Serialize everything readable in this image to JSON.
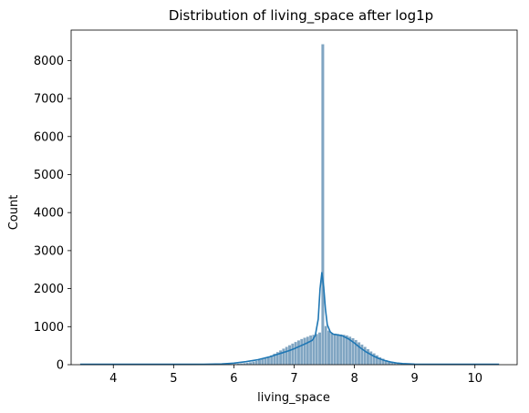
{
  "chart_data": {
    "type": "bar",
    "title": "Distribution of living_space after log1p",
    "xlabel": "living_space",
    "ylabel": "Count",
    "xlim": [
      3.3,
      10.7
    ],
    "ylim": [
      0,
      8800
    ],
    "xticks": [
      4,
      5,
      6,
      7,
      8,
      9,
      10
    ],
    "yticks": [
      0,
      1000,
      2000,
      3000,
      4000,
      5000,
      6000,
      7000,
      8000
    ],
    "grid": false,
    "bin_width": 0.05,
    "histogram": {
      "bin_left_edges": [
        5.8,
        5.85,
        5.9,
        5.95,
        6.0,
        6.05,
        6.1,
        6.15,
        6.2,
        6.25,
        6.3,
        6.35,
        6.4,
        6.45,
        6.5,
        6.55,
        6.6,
        6.65,
        6.7,
        6.75,
        6.8,
        6.85,
        6.9,
        6.95,
        7.0,
        7.05,
        7.1,
        7.15,
        7.2,
        7.25,
        7.3,
        7.35,
        7.4,
        7.45,
        7.5,
        7.55,
        7.6,
        7.65,
        7.7,
        7.75,
        7.8,
        7.85,
        7.9,
        7.95,
        8.0,
        8.05,
        8.1,
        8.15,
        8.2,
        8.25,
        8.3,
        8.35,
        8.4,
        8.45,
        8.5,
        8.55,
        8.6,
        8.65,
        8.7,
        8.75,
        8.8,
        8.85,
        8.9,
        8.95
      ],
      "counts": [
        8,
        10,
        14,
        18,
        22,
        28,
        36,
        45,
        55,
        68,
        85,
        100,
        125,
        150,
        180,
        215,
        250,
        290,
        335,
        380,
        425,
        470,
        515,
        560,
        600,
        640,
        680,
        710,
        740,
        770,
        790,
        810,
        850,
        8430,
        1020,
        900,
        840,
        820,
        810,
        800,
        790,
        770,
        740,
        700,
        650,
        590,
        530,
        470,
        410,
        350,
        300,
        250,
        200,
        160,
        125,
        95,
        70,
        52,
        38,
        28,
        20,
        14,
        10,
        7
      ]
    },
    "kde": {
      "x": [
        3.45,
        4.0,
        5.0,
        5.5,
        5.8,
        6.0,
        6.2,
        6.4,
        6.5,
        6.6,
        6.7,
        6.8,
        6.9,
        7.0,
        7.1,
        7.2,
        7.3,
        7.35,
        7.4,
        7.43,
        7.46,
        7.49,
        7.52,
        7.55,
        7.6,
        7.65,
        7.7,
        7.8,
        7.9,
        8.0,
        8.1,
        8.2,
        8.3,
        8.4,
        8.5,
        8.6,
        8.7,
        8.8,
        9.0,
        9.5,
        10.0,
        10.4
      ],
      "y": [
        10,
        10,
        10,
        12,
        20,
        40,
        80,
        130,
        170,
        210,
        260,
        310,
        360,
        420,
        490,
        560,
        640,
        760,
        1200,
        2000,
        2420,
        2050,
        1450,
        1050,
        860,
        800,
        790,
        760,
        680,
        570,
        440,
        330,
        240,
        165,
        110,
        70,
        45,
        28,
        14,
        10,
        10,
        10
      ]
    },
    "colors": {
      "bar_fill": "#4a7fa8",
      "bar_edge": "#ffffff",
      "kde_line": "#1f77b4",
      "axes": "#000000"
    }
  }
}
